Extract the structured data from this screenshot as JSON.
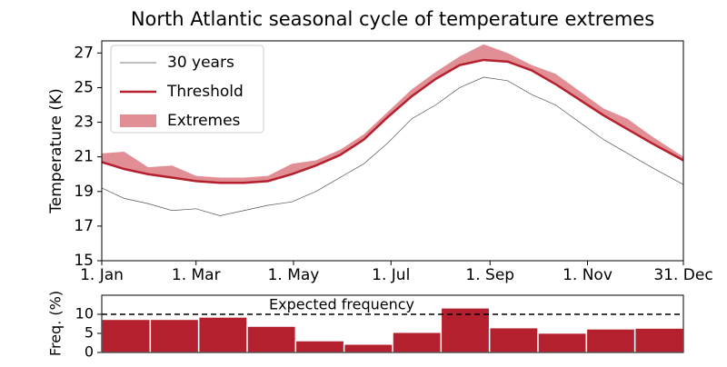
{
  "chart_data": [
    {
      "type": "line",
      "title": "North Atlantic seasonal cycle of temperature extremes",
      "y_label": "Temperature (K)",
      "x": [
        1,
        15,
        30,
        45,
        60,
        75,
        90,
        105,
        120,
        135,
        150,
        165,
        180,
        195,
        210,
        225,
        240,
        255,
        270,
        285,
        300,
        315,
        330,
        345,
        365
      ],
      "xlim": [
        1,
        365
      ],
      "xticks": [
        {
          "value": 1,
          "label": "1. Jan"
        },
        {
          "value": 60,
          "label": "1. Mar"
        },
        {
          "value": 121,
          "label": "1. May"
        },
        {
          "value": 182,
          "label": "1. Jul"
        },
        {
          "value": 244,
          "label": "1. Sep"
        },
        {
          "value": 305,
          "label": "1. Nov"
        },
        {
          "value": 365,
          "label": "31. Dec"
        }
      ],
      "ylim": [
        15,
        27.7
      ],
      "yticks": [
        15,
        17,
        19,
        21,
        23,
        25,
        27
      ],
      "legend": "upper left",
      "series": [
        {
          "name": "30 years",
          "color": "#555555",
          "style": "line",
          "values": [
            19.2,
            18.6,
            18.3,
            17.9,
            18.0,
            17.6,
            17.9,
            18.2,
            18.4,
            19.0,
            19.8,
            20.6,
            21.8,
            23.2,
            24.0,
            25.0,
            25.6,
            25.4,
            24.6,
            24.0,
            23.0,
            22.0,
            21.2,
            20.4,
            19.4
          ]
        },
        {
          "name": "Threshold",
          "color": "#b5202e",
          "style": "line",
          "values": [
            20.7,
            20.3,
            20.0,
            19.8,
            19.6,
            19.5,
            19.5,
            19.6,
            20.0,
            20.5,
            21.1,
            22.0,
            23.3,
            24.5,
            25.5,
            26.3,
            26.6,
            26.5,
            26.0,
            25.2,
            24.3,
            23.4,
            22.6,
            21.8,
            20.8
          ]
        },
        {
          "name": "Extremes",
          "color": "#d9737b",
          "style": "area",
          "fill_to_series": 1,
          "values": [
            21.2,
            21.3,
            20.4,
            20.5,
            19.9,
            19.8,
            19.8,
            19.9,
            20.6,
            20.8,
            21.4,
            22.3,
            23.6,
            24.9,
            25.9,
            26.8,
            27.5,
            27.0,
            26.3,
            25.8,
            24.8,
            23.8,
            23.2,
            22.2,
            21.0
          ]
        }
      ]
    },
    {
      "type": "bar",
      "y_label": "Freq. (%)",
      "categories": [
        null,
        null,
        null,
        null,
        null,
        null,
        null,
        null,
        null,
        null,
        null,
        null
      ],
      "values": [
        8.7,
        8.7,
        9.3,
        6.9,
        3.1,
        2.2,
        5.3,
        11.7,
        6.5,
        5.1,
        6.2,
        6.4
      ],
      "color": "#b5202e",
      "ylim": [
        0,
        15
      ],
      "yticks": [
        0,
        5,
        10
      ],
      "annotation": {
        "text": "Expected frequency",
        "value": 10
      }
    }
  ]
}
